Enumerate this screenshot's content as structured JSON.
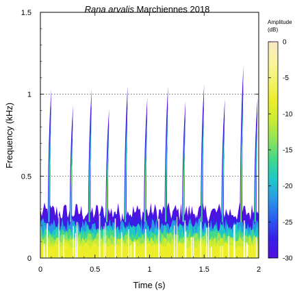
{
  "chart_data": {
    "type": "heatmap",
    "title_italic": "Rana arvalis",
    "title_rest": " Marchiennes 2018",
    "xlabel": "Time (s)",
    "ylabel": "Frequency (kHz)",
    "xlim": [
      0,
      2
    ],
    "ylim": [
      0,
      1.5
    ],
    "x_ticks": [
      0,
      0.5,
      1,
      1.5,
      2
    ],
    "x_tick_labels": [
      "0",
      "0.5",
      "1",
      "1.5",
      "2"
    ],
    "y_ticks": [
      0,
      0.5,
      1,
      1.5
    ],
    "y_tick_labels": [
      "0",
      "0.5",
      "1",
      "1.5"
    ],
    "reference_lines_y": [
      0.5,
      1.0
    ],
    "colorbar": {
      "label_line1": "Amplitude",
      "label_line2": "(dB)",
      "range": [
        -30,
        0
      ],
      "ticks": [
        0,
        -5,
        -10,
        -15,
        -20,
        -25,
        -30
      ],
      "tick_labels": [
        "0",
        "-5",
        "-10",
        "-15",
        "-20",
        "-25",
        "-30"
      ],
      "colors": [
        "#f7e8c8",
        "#fbf4a0",
        "#f2f36b",
        "#ecee2a",
        "#c8ec34",
        "#8ee45a",
        "#3fd88c",
        "#1fc8c8",
        "#2a98e6",
        "#2a5ef0",
        "#3a1ee8",
        "#5010e0"
      ]
    },
    "calls": [
      {
        "t": 0.09,
        "peak_khz": 1.03,
        "level_db": -20
      },
      {
        "t": 0.29,
        "peak_khz": 0.93,
        "level_db": -17
      },
      {
        "t": 0.46,
        "peak_khz": 1.03,
        "level_db": -19
      },
      {
        "t": 0.62,
        "peak_khz": 0.91,
        "level_db": -17
      },
      {
        "t": 0.79,
        "peak_khz": 1.05,
        "level_db": -18
      },
      {
        "t": 0.97,
        "peak_khz": 0.98,
        "level_db": -16
      },
      {
        "t": 1.16,
        "peak_khz": 1.05,
        "level_db": -18
      },
      {
        "t": 1.32,
        "peak_khz": 0.96,
        "level_db": -17
      },
      {
        "t": 1.49,
        "peak_khz": 1.06,
        "level_db": -18
      },
      {
        "t": 1.68,
        "peak_khz": 0.97,
        "level_db": -18
      },
      {
        "t": 1.85,
        "peak_khz": 1.17,
        "level_db": -17
      },
      {
        "t": 1.98,
        "peak_khz": 0.98,
        "level_db": -20
      }
    ],
    "noise_band": {
      "top_khz": 0.3,
      "peak_level_db": -8
    }
  }
}
